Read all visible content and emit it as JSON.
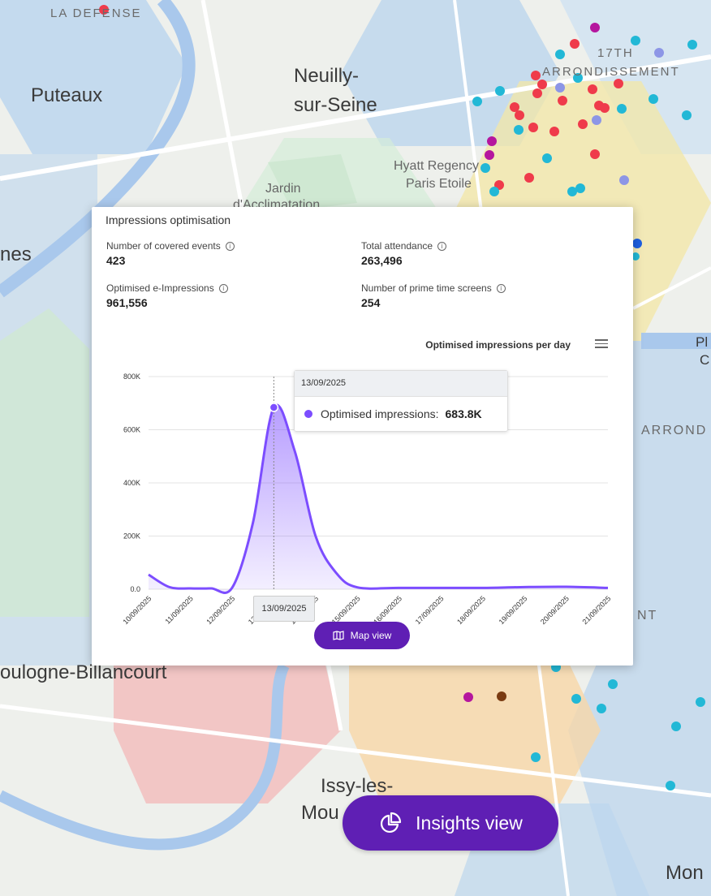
{
  "map": {
    "places": {
      "la_defense": "LA DEFENSE",
      "puteaux": "Puteaux",
      "neuilly_1": "Neuilly-",
      "neuilly_2": "sur-Seine",
      "arr17_1": "17TH",
      "arr17_2": "ARRONDISSEMENT",
      "hyatt_1": "Hyatt Regency",
      "hyatt_2": "Paris Etoile",
      "jardin": "Jardin",
      "jardin_2": "d'Acclimatation",
      "nes": "nes",
      "boulogne": "oulogne-Billancourt",
      "issy_1": "Issy-les-",
      "issy_2": "Mou",
      "mont": "Mon",
      "arrond_right": "ARROND",
      "nt_right": "NT",
      "pl_1": "Pl",
      "pl_2": "C"
    }
  },
  "panel": {
    "title": "Impressions optimisation",
    "metrics": [
      {
        "label": "Number of covered events",
        "value": "423"
      },
      {
        "label": "Total attendance",
        "value": "263,496"
      },
      {
        "label": "Optimised e-Impressions",
        "value": "961,556"
      },
      {
        "label": "Number of prime time screens",
        "value": "254"
      }
    ],
    "chart_title": "Optimised impressions per day",
    "tooltip": {
      "date": "13/09/2025",
      "series_label": "Optimised impressions:",
      "value": "683.8K"
    },
    "crosshair_label": "13/09/2025",
    "map_view_label": "Map view"
  },
  "insights_button": {
    "label": "Insights view"
  },
  "colors": {
    "accent": "#5f1fb4",
    "series": "#7c4dff"
  },
  "chart_data": {
    "type": "area",
    "title": "Optimised impressions per day",
    "series": [
      {
        "name": "Optimised impressions"
      }
    ],
    "x": [
      "10/09/2025",
      "10/09/2025 12:00",
      "11/09/2025",
      "11/09/2025 12:00",
      "12/09/2025",
      "12/09/2025 12:00",
      "13/09/2025",
      "13/09/2025 12:00",
      "14/09/2025",
      "14/09/2025 12:00",
      "15/09/2025",
      "16/09/2025",
      "17/09/2025",
      "18/09/2025",
      "19/09/2025",
      "20/09/2025",
      "21/09/2025"
    ],
    "y": [
      55000,
      8000,
      3000,
      3000,
      5000,
      250000,
      683800,
      520000,
      200000,
      60000,
      7000,
      5000,
      5000,
      5000,
      8000,
      9000,
      5000
    ],
    "xticks": [
      "10/09/2025",
      "11/09/2025",
      "12/09/2025",
      "13/09/2025",
      "14/09/2025",
      "15/09/2025",
      "16/09/2025",
      "17/09/2025",
      "18/09/2025",
      "19/09/2025",
      "20/09/2025",
      "21/09/2025"
    ],
    "ylabels": [
      "0.0",
      "200K",
      "400K",
      "600K",
      "800K"
    ],
    "ylim": [
      0,
      800000
    ],
    "grid": true
  }
}
